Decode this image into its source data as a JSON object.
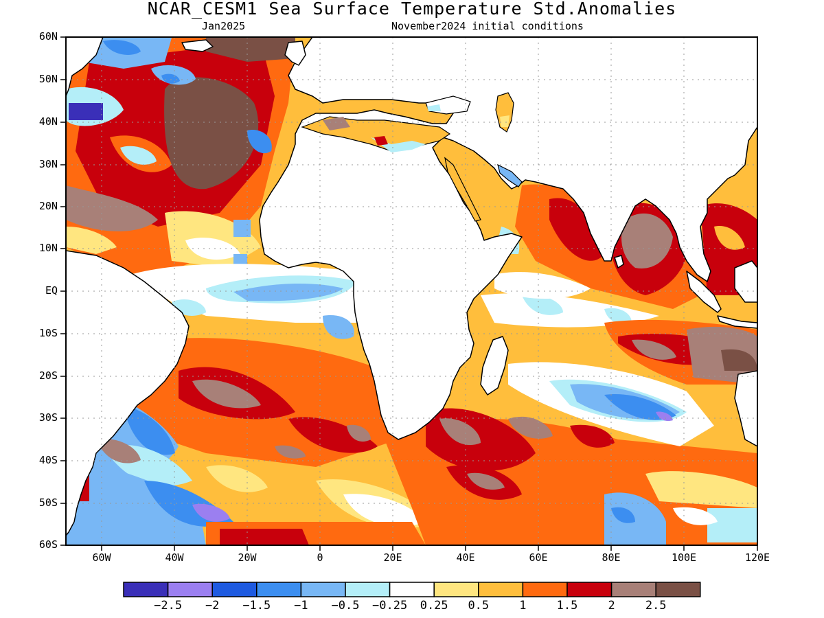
{
  "title": "NCAR_CESM1 Sea Surface Temperature Std.Anomalies",
  "subtitle_left": "Jan2025",
  "subtitle_right": "November2024 initial conditions",
  "lat_labels": [
    "60N",
    "50N",
    "40N",
    "30N",
    "20N",
    "10N",
    "EQ",
    "10S",
    "20S",
    "30S",
    "40S",
    "50S",
    "60S"
  ],
  "lon_labels": [
    "60W",
    "40W",
    "20W",
    "0",
    "20E",
    "40E",
    "60E",
    "80E",
    "100E",
    "120E"
  ],
  "colorbar": {
    "colors": [
      "#3a2fb8",
      "#9b7ff0",
      "#1e5ae0",
      "#3c8ef0",
      "#78b7f5",
      "#b4eef8",
      "#ffffff",
      "#ffe680",
      "#ffbe3c",
      "#ff6a10",
      "#c8000c",
      "#a88078",
      "#7a5045"
    ],
    "labels": [
      "−2.5",
      "−2",
      "−1.5",
      "−1",
      "−0.5",
      "−0.25",
      "0.25",
      "0.5",
      "1",
      "1.5",
      "2",
      "2.5"
    ]
  },
  "map": {
    "lon_range": [
      -70,
      120
    ],
    "lat_range": [
      -60,
      60
    ],
    "grid": true,
    "land_color": "#ffffff",
    "coastline_color": "#000000"
  }
}
